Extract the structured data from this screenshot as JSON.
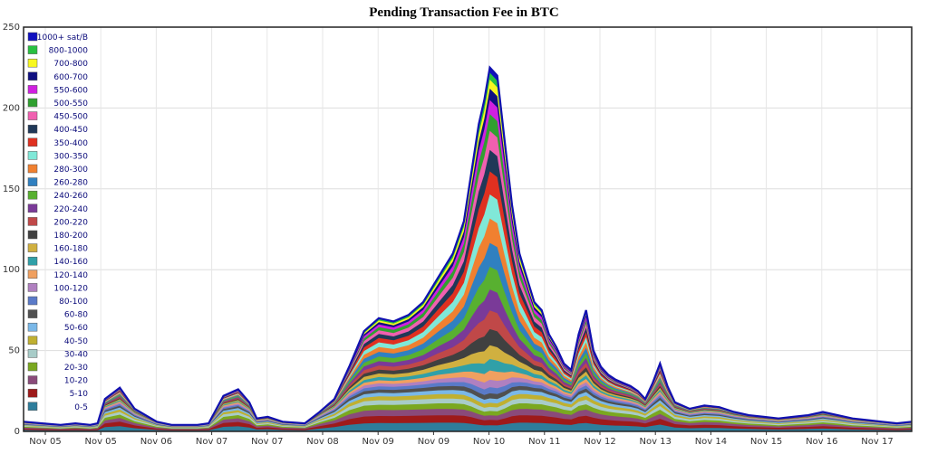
{
  "chart_data": {
    "type": "area",
    "stacked": true,
    "title": "Pending Transaction Fee in BTC",
    "xlabel": "",
    "ylabel": "",
    "ylim": [
      0,
      250
    ],
    "yticks": [
      0,
      50,
      100,
      150,
      200,
      250
    ],
    "grid": true,
    "legend_position": "top-left",
    "xtick_labels": [
      "Nov 05",
      "Nov 05",
      "Nov 06",
      "Nov 07",
      "Nov 07",
      "Nov 08",
      "Nov 09",
      "Nov 09",
      "Nov 10",
      "Nov 11",
      "Nov 12",
      "Nov 13",
      "Nov 14",
      "Nov 15",
      "Nov 16",
      "Nov 17"
    ],
    "x": [
      0,
      5,
      10,
      14,
      18,
      20,
      22,
      26,
      30,
      36,
      40,
      44,
      47,
      50,
      54,
      58,
      61,
      63,
      66,
      70,
      76,
      80,
      84,
      88,
      92,
      96,
      100,
      104,
      108,
      112,
      116,
      119,
      121,
      123,
      124.5,
      126,
      128,
      130,
      132,
      134,
      136,
      138,
      140,
      142,
      144,
      146,
      148,
      150,
      152,
      154,
      156,
      158,
      160,
      162,
      164,
      166,
      168,
      170,
      172,
      174,
      176,
      180,
      184,
      188,
      192,
      196,
      200,
      204,
      208,
      212,
      216,
      220,
      224,
      228,
      232,
      236,
      240
    ],
    "totals": [
      6,
      5,
      4,
      5,
      4,
      5,
      20,
      27,
      14,
      6,
      4,
      4,
      4,
      5,
      22,
      26,
      18,
      8,
      9,
      6,
      5,
      12,
      20,
      40,
      62,
      70,
      68,
      72,
      80,
      95,
      110,
      130,
      160,
      190,
      205,
      225,
      220,
      180,
      140,
      110,
      95,
      80,
      75,
      60,
      52,
      42,
      38,
      60,
      75,
      50,
      40,
      35,
      32,
      30,
      28,
      25,
      20,
      30,
      42,
      28,
      18,
      14,
      16,
      15,
      12,
      10,
      9,
      8,
      9,
      10,
      12,
      10,
      8,
      7,
      6,
      5,
      6
    ],
    "series": [
      {
        "name": "0-5",
        "color": "#2e7d9b"
      },
      {
        "name": "5-10",
        "color": "#9e1a1a"
      },
      {
        "name": "10-20",
        "color": "#8a4a7a"
      },
      {
        "name": "20-30",
        "color": "#7aa820"
      },
      {
        "name": "30-40",
        "color": "#a8ccc8"
      },
      {
        "name": "40-50",
        "color": "#c0b030"
      },
      {
        "name": "50-60",
        "color": "#7ab8e8"
      },
      {
        "name": "60-80",
        "color": "#505050"
      },
      {
        "name": "80-100",
        "color": "#5a7ac8"
      },
      {
        "name": "100-120",
        "color": "#b080c0"
      },
      {
        "name": "120-140",
        "color": "#f0a060"
      },
      {
        "name": "140-160",
        "color": "#30a0a8"
      },
      {
        "name": "160-180",
        "color": "#d0b040"
      },
      {
        "name": "180-200",
        "color": "#404040"
      },
      {
        "name": "200-220",
        "color": "#c04848"
      },
      {
        "name": "220-240",
        "color": "#7a3a98"
      },
      {
        "name": "240-260",
        "color": "#58b030"
      },
      {
        "name": "260-280",
        "color": "#3080c0"
      },
      {
        "name": "280-300",
        "color": "#f08030"
      },
      {
        "name": "300-350",
        "color": "#80e8d8"
      },
      {
        "name": "350-400",
        "color": "#e03020"
      },
      {
        "name": "400-450",
        "color": "#203858"
      },
      {
        "name": "450-500",
        "color": "#f060b0"
      },
      {
        "name": "500-550",
        "color": "#30a030"
      },
      {
        "name": "550-600",
        "color": "#d020e0"
      },
      {
        "name": "600-700",
        "color": "#101080"
      },
      {
        "name": "700-800",
        "color": "#f8f820"
      },
      {
        "name": "800-1000",
        "color": "#28c040"
      },
      {
        "name": "1000+ sat/B",
        "color": "#1010c0"
      }
    ]
  }
}
